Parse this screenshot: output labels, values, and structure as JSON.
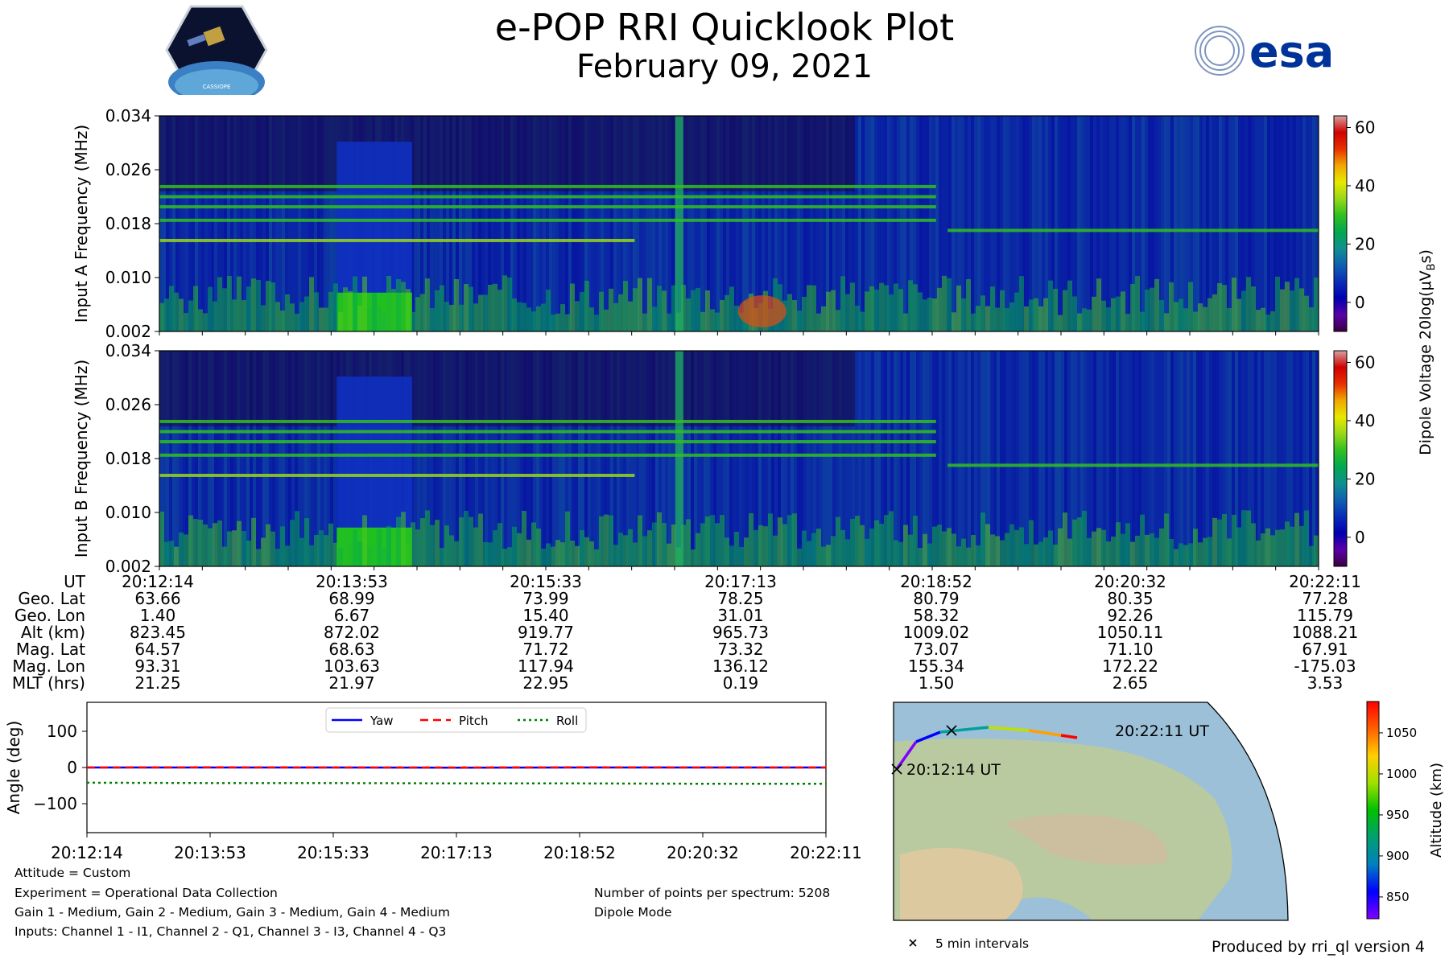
{
  "header": {
    "title": "e-POP RRI Quicklook Plot",
    "subtitle": "February 09, 2021",
    "left_logo": "cassiope-mission-logo",
    "left_logo_text": "CASSIOPE",
    "right_logo_text": "esa",
    "right_logo_color": "#003399"
  },
  "colors": {
    "cmap_stops": [
      "#3a0040",
      "#5a00a8",
      "#0000b0",
      "#0a2cb8",
      "#0f60b0",
      "#0f9090",
      "#00a850",
      "#30c020",
      "#98d818",
      "#e8e800",
      "#f0a800",
      "#e83000",
      "#d00000",
      "#d8a0a0"
    ],
    "yaw": "#0000ff",
    "pitch": "#ff0000",
    "roll": "#008000"
  },
  "spectrograms": [
    {
      "ylabel": "Input A Frequency (MHz)",
      "yticks": [
        "0.002",
        "0.010",
        "0.018",
        "0.026",
        "0.034"
      ],
      "ylim": [
        0.002,
        0.034
      ]
    },
    {
      "ylabel": "Input B Frequency (MHz)",
      "yticks": [
        "0.002",
        "0.010",
        "0.018",
        "0.026",
        "0.034"
      ],
      "ylim": [
        0.002,
        0.034
      ]
    }
  ],
  "colorbar": {
    "label": "Dipole Voltage 20log(μV",
    "label_sub": "B",
    "label_end": "s)",
    "ticks": [
      "0",
      "20",
      "40",
      "60"
    ],
    "range": [
      -10,
      64
    ]
  },
  "ephemeris": {
    "labels": [
      "UT",
      "Geo. Lat",
      "Geo. Lon",
      "Alt (km)",
      "Mag. Lat",
      "Mag. Lon",
      "MLT (hrs)"
    ],
    "columns": [
      [
        "20:12:14",
        "63.66",
        "1.40",
        "823.45",
        "64.57",
        "93.31",
        "21.25"
      ],
      [
        "20:13:53",
        "68.99",
        "6.67",
        "872.02",
        "68.63",
        "103.63",
        "21.97"
      ],
      [
        "20:15:33",
        "73.99",
        "15.40",
        "919.77",
        "71.72",
        "117.94",
        "22.95"
      ],
      [
        "20:17:13",
        "78.25",
        "31.01",
        "965.73",
        "73.32",
        "136.12",
        "0.19"
      ],
      [
        "20:18:52",
        "80.79",
        "58.32",
        "1009.02",
        "73.07",
        "155.34",
        "1.50"
      ],
      [
        "20:20:32",
        "80.35",
        "92.26",
        "1050.11",
        "71.10",
        "172.22",
        "2.65"
      ],
      [
        "20:22:11",
        "77.28",
        "115.79",
        "1088.21",
        "67.91",
        "-175.03",
        "3.53"
      ]
    ]
  },
  "chart_data": [
    {
      "type": "heatmap",
      "title": "",
      "ylabel": "Input A Frequency (MHz)",
      "xlabel": "",
      "ylim": [
        0.002,
        0.034
      ],
      "x_ticks": [
        "20:12:14",
        "20:13:53",
        "20:15:33",
        "20:17:13",
        "20:18:52",
        "20:20:32",
        "20:22:11"
      ],
      "colorbar_range": [
        -10,
        64
      ],
      "emission_lines_mhz": [
        0.0155,
        0.0185,
        0.0205,
        0.022,
        0.0235
      ],
      "line_after_20_18_52_mhz": 0.017
    },
    {
      "type": "heatmap",
      "title": "",
      "ylabel": "Input B Frequency (MHz)",
      "xlabel": "",
      "ylim": [
        0.002,
        0.034
      ],
      "x_ticks": [
        "20:12:14",
        "20:13:53",
        "20:15:33",
        "20:17:13",
        "20:18:52",
        "20:20:32",
        "20:22:11"
      ],
      "colorbar_range": [
        -10,
        64
      ],
      "emission_lines_mhz": [
        0.0155,
        0.0185,
        0.0205,
        0.022,
        0.0235
      ],
      "line_after_20_18_52_mhz": 0.017
    },
    {
      "type": "line",
      "title": "",
      "ylabel": "Angle (deg)",
      "xlabel": "",
      "x_ticks": [
        "20:12:14",
        "20:13:53",
        "20:15:33",
        "20:17:13",
        "20:18:52",
        "20:20:32",
        "20:22:11"
      ],
      "ylim": [
        -180,
        180
      ],
      "yticks": [
        "100",
        "0",
        "−100"
      ],
      "ytick_values": [
        100,
        0,
        -100
      ],
      "legend_position": "upper center",
      "series": [
        {
          "name": "Yaw",
          "style": "solid",
          "values": [
            0,
            0,
            0,
            -0.5,
            0,
            0,
            0
          ]
        },
        {
          "name": "Pitch",
          "style": "dashed",
          "values": [
            0,
            0.5,
            0,
            0,
            0.5,
            0,
            0
          ]
        },
        {
          "name": "Roll",
          "style": "dotted",
          "values": [
            -42,
            -43,
            -43,
            -44,
            -44,
            -45,
            -45
          ]
        }
      ]
    },
    {
      "type": "scatter",
      "title": "",
      "ylabel": "Altitude (km)",
      "start_label": "20:12:14 UT",
      "end_label": "20:22:11 UT",
      "colorbar_ticks": [
        "850",
        "900",
        "950",
        "1000",
        "1050"
      ],
      "altitude_range": [
        823.45,
        1088.21
      ]
    }
  ],
  "notes": {
    "attitude": "Attitude = Custom",
    "experiment": "Experiment = Operational Data Collection",
    "gains": "Gain 1 - Medium, Gain 2 - Medium, Gain 3 - Medium, Gain 4 - Medium",
    "inputs": "Inputs: Channel 1 - I1, Channel 2 - Q1, Channel 3 - I3, Channel 4 - Q3",
    "points": "Number of points per spectrum: 5208",
    "mode": "Dipole Mode",
    "interval_legend": "5 min intervals",
    "produced": "Produced by rri_ql version 4"
  }
}
